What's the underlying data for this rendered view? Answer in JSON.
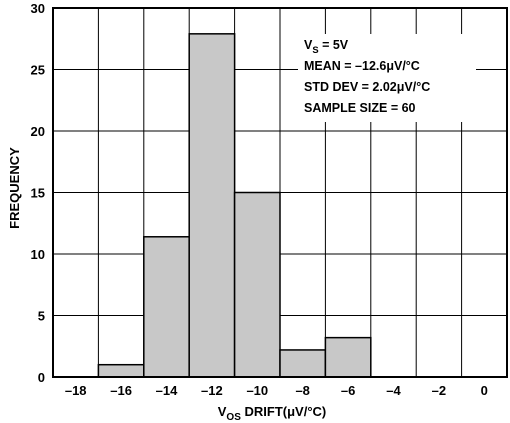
{
  "chart_data": {
    "type": "bar",
    "title": "",
    "xlabel": {
      "prefix": "V",
      "sub": "OS",
      "suffix": " DRIFT(μV/°C)"
    },
    "ylabel": "FREQUENCY",
    "xlim": [
      -19,
      1
    ],
    "ylim": [
      0,
      30
    ],
    "x_ticks": [
      -18,
      -16,
      -14,
      -12,
      -10,
      -8,
      -6,
      -4,
      -2,
      0
    ],
    "x_tick_labels": [
      "–18",
      "–16",
      "–14",
      "–12",
      "–10",
      "–8",
      "–6",
      "–4",
      "–2",
      "0"
    ],
    "y_ticks": [
      0,
      5,
      10,
      15,
      20,
      25,
      30
    ],
    "y_tick_labels": [
      "0",
      "5",
      "10",
      "15",
      "20",
      "25",
      "30"
    ],
    "grid": true,
    "bar_color": "#c8c8c8",
    "bins": [
      {
        "start": -17,
        "end": -15,
        "value": 1
      },
      {
        "start": -15,
        "end": -13,
        "value": 11.4
      },
      {
        "start": -13,
        "end": -11,
        "value": 27.9
      },
      {
        "start": -11,
        "end": -9,
        "value": 15
      },
      {
        "start": -9,
        "end": -7,
        "value": 2.2
      },
      {
        "start": -7,
        "end": -5,
        "value": 3.2
      }
    ],
    "annotations": [
      {
        "prefix": "V",
        "sub": "S",
        "suffix": " = 5V"
      },
      {
        "prefix": "MEAN = –12.6μV/°C",
        "sub": "",
        "suffix": ""
      },
      {
        "prefix": "STD DEV = 2.02μV/°C",
        "sub": "",
        "suffix": ""
      },
      {
        "prefix": "SAMPLE SIZE = 60",
        "sub": "",
        "suffix": ""
      }
    ]
  }
}
